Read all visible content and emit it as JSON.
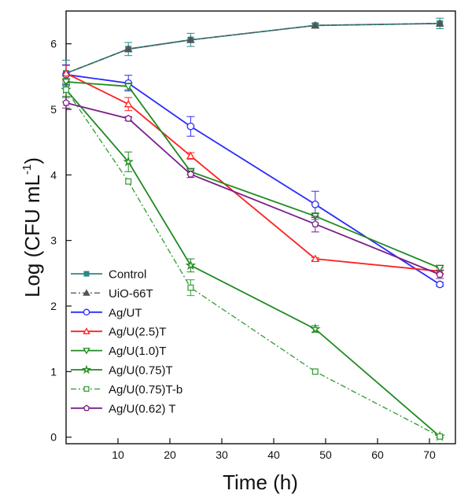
{
  "chart_data": {
    "type": "line",
    "xlabel": "Time (h)",
    "ylabel_main": "Log (CFU mL",
    "ylabel_sup": "-1",
    "ylabel_close": ")",
    "xlim": [
      0,
      75
    ],
    "ylim": [
      -0.1,
      6.5
    ],
    "x_ticks": [
      10,
      20,
      30,
      40,
      50,
      60,
      70
    ],
    "y_ticks": [
      0,
      1,
      2,
      3,
      4,
      5,
      6
    ],
    "grid": false,
    "legend_position": "bottom-left",
    "x": [
      0,
      12,
      24,
      48,
      72
    ],
    "series": [
      {
        "name": "Control",
        "color": "#2a8a8a",
        "marker": "square-filled",
        "dash": "solid",
        "values": [
          5.55,
          5.92,
          6.06,
          6.28,
          6.31
        ],
        "errors": [
          0.2,
          0.1,
          0.1,
          0.03,
          0.08
        ]
      },
      {
        "name": "UiO-66T",
        "color": "#555555",
        "marker": "triangle-filled",
        "dash": "dashdot",
        "values": [
          5.55,
          5.92,
          6.06,
          6.28,
          6.31
        ],
        "errors": [
          0,
          0,
          0,
          0,
          0
        ]
      },
      {
        "name": "Ag/UT",
        "color": "#2b2bff",
        "marker": "circle",
        "dash": "solid",
        "values": [
          5.53,
          5.4,
          4.74,
          3.55,
          2.33
        ],
        "errors": [
          0.15,
          0.12,
          0.15,
          0.2,
          0.03
        ]
      },
      {
        "name": "Ag/U(2.5)T",
        "color": "#ff2020",
        "marker": "triangle-up",
        "dash": "solid",
        "values": [
          5.55,
          5.08,
          4.29,
          2.72,
          2.53
        ],
        "errors": [
          0.12,
          0.1,
          0.05,
          0.02,
          0.05
        ]
      },
      {
        "name": "Ag/U(1.0)T",
        "color": "#1f8a1f",
        "marker": "triangle-down",
        "dash": "solid",
        "values": [
          5.42,
          5.35,
          4.05,
          3.37,
          2.58
        ],
        "errors": [
          0.05,
          0.05,
          0.05,
          0.05,
          0.03
        ]
      },
      {
        "name": "Ag/U(0.75)T",
        "color": "#1f8a1f",
        "marker": "star",
        "dash": "solid",
        "values": [
          5.3,
          4.2,
          2.62,
          1.65,
          0.01
        ],
        "errors": [
          0.1,
          0.15,
          0.1,
          0.05,
          0.02
        ]
      },
      {
        "name": "Ag/U(0.75)T-b",
        "color": "#3aa03a",
        "marker": "square-open",
        "dash": "dashdot",
        "values": [
          5.3,
          3.9,
          2.28,
          1.0,
          0.01
        ],
        "errors": [
          0,
          0,
          0.12,
          0,
          0
        ]
      },
      {
        "name": "Ag/U(0.62) T",
        "color": "#7a1f8a",
        "marker": "pentagon",
        "dash": "solid",
        "values": [
          5.1,
          4.86,
          4.01,
          3.25,
          2.48
        ],
        "errors": [
          0.08,
          0.03,
          0.05,
          0.12,
          0.06
        ]
      }
    ]
  }
}
